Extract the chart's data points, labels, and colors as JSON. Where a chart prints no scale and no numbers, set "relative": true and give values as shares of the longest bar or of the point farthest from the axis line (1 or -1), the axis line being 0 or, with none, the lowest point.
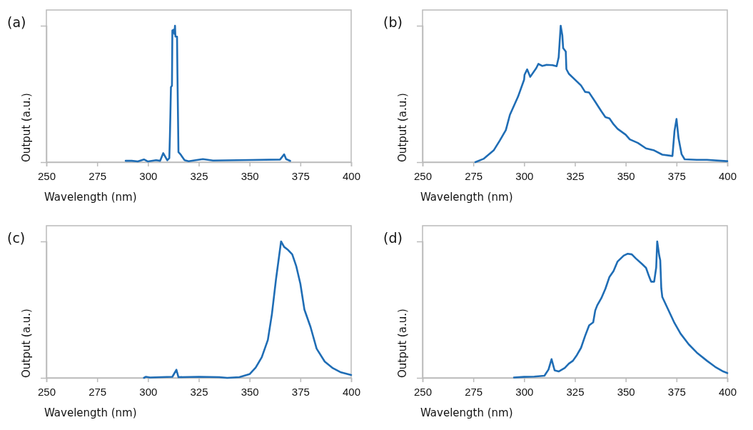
{
  "chart_data": [
    {
      "type": "line",
      "title": "(a)",
      "xlabel": "Wavelength (nm)",
      "ylabel": "Output (a.u.)",
      "relative": true,
      "xlim": [
        250,
        400
      ],
      "xticks": [
        250,
        275,
        300,
        325,
        350,
        375,
        400
      ],
      "series": [
        {
          "color": "#1f6db5",
          "x": [
            289,
            292,
            295,
            298,
            300,
            304,
            306,
            307.5,
            309.5,
            310.5,
            310.8,
            311,
            311.3,
            311.8,
            312,
            312.5,
            313,
            313.3,
            313.5,
            314.3,
            314.5,
            315,
            316,
            318,
            320,
            327,
            332,
            350,
            365,
            367,
            368,
            370
          ],
          "values": [
            0.01,
            0.01,
            0.005,
            0.02,
            0.005,
            0.014,
            0.01,
            0.066,
            0.014,
            0.03,
            0.195,
            0.33,
            0.55,
            0.56,
            0.965,
            0.97,
            0.94,
            1,
            0.92,
            0.92,
            0.645,
            0.074,
            0.057,
            0.014,
            0.007,
            0.022,
            0.012,
            0.016,
            0.019,
            0.057,
            0.022,
            0.009
          ]
        }
      ]
    },
    {
      "type": "line",
      "title": "(b)",
      "xlabel": "Wavelength (nm)",
      "ylabel": "Output (a.u.)",
      "relative": true,
      "xlim": [
        250,
        400
      ],
      "xticks": [
        250,
        275,
        300,
        325,
        350,
        375,
        400
      ],
      "series": [
        {
          "color": "#1f6db5",
          "x": [
            276,
            280,
            285,
            288,
            291,
            293,
            297,
            300,
            300.2,
            301.5,
            303,
            306,
            307,
            309,
            311,
            314,
            316,
            317,
            318,
            318.8,
            319.2,
            320.5,
            320.8,
            322,
            328,
            330,
            332,
            335,
            338,
            340,
            342,
            344,
            346,
            350,
            352,
            356,
            360,
            364,
            368,
            373,
            374,
            375,
            376,
            377.5,
            379,
            385,
            390,
            400
          ],
          "values": [
            0,
            0.024,
            0.086,
            0.158,
            0.235,
            0.347,
            0.48,
            0.605,
            0.64,
            0.68,
            0.625,
            0.69,
            0.72,
            0.705,
            0.713,
            0.711,
            0.703,
            0.768,
            1,
            0.93,
            0.837,
            0.81,
            0.682,
            0.648,
            0.562,
            0.515,
            0.51,
            0.442,
            0.373,
            0.33,
            0.321,
            0.278,
            0.244,
            0.201,
            0.167,
            0.141,
            0.101,
            0.086,
            0.055,
            0.045,
            0.227,
            0.316,
            0.175,
            0.058,
            0.021,
            0.017,
            0.017,
            0.007
          ]
        }
      ]
    },
    {
      "type": "line",
      "title": "(c)",
      "xlabel": "Wavelength (nm)",
      "ylabel": "Output (a.u.)",
      "relative": true,
      "xlim": [
        250,
        400
      ],
      "xticks": [
        250,
        275,
        300,
        325,
        350,
        375,
        400
      ],
      "series": [
        {
          "color": "#1f6db5",
          "x": [
            298,
            299,
            301,
            312,
            314,
            315,
            325,
            335,
            339,
            345,
            350,
            353,
            356,
            359,
            361,
            363,
            365.5,
            367,
            369,
            371,
            373,
            375,
            377,
            380,
            383,
            387,
            391,
            395,
            400
          ],
          "values": [
            0,
            0.008,
            0.003,
            0.008,
            0.059,
            0.005,
            0.008,
            0.005,
            0,
            0.005,
            0.027,
            0.075,
            0.151,
            0.278,
            0.468,
            0.722,
            1,
            0.96,
            0.937,
            0.905,
            0.817,
            0.69,
            0.5,
            0.373,
            0.214,
            0.119,
            0.071,
            0.04,
            0.021
          ]
        }
      ]
    },
    {
      "type": "line",
      "title": "(d)",
      "xlabel": "Wavelength (nm)",
      "ylabel": "Output (a.u.)",
      "relative": true,
      "xlim": [
        250,
        400
      ],
      "xticks": [
        250,
        275,
        300,
        325,
        350,
        375,
        400
      ],
      "series": [
        {
          "color": "#1f6db5",
          "x": [
            295,
            300,
            305,
            310,
            312,
            313.5,
            315,
            317,
            320,
            322,
            324,
            326,
            328,
            330,
            332,
            334,
            335,
            336,
            338,
            340,
            342,
            344,
            346,
            349,
            351,
            353,
            355,
            358,
            360,
            361.5,
            362.5,
            364,
            365,
            365.5,
            366.5,
            367,
            367.5,
            368,
            371,
            374,
            377,
            381,
            385,
            390,
            394,
            398,
            400
          ],
          "values": [
            0.003,
            0.007,
            0.009,
            0.016,
            0.061,
            0.137,
            0.055,
            0.047,
            0.073,
            0.104,
            0.125,
            0.168,
            0.22,
            0.307,
            0.385,
            0.407,
            0.494,
            0.532,
            0.584,
            0.653,
            0.74,
            0.783,
            0.853,
            0.896,
            0.91,
            0.905,
            0.875,
            0.835,
            0.806,
            0.743,
            0.705,
            0.705,
            0.809,
            1,
            0.896,
            0.861,
            0.657,
            0.593,
            0.497,
            0.402,
            0.324,
            0.246,
            0.185,
            0.125,
            0.081,
            0.047,
            0.035
          ]
        }
      ]
    }
  ]
}
